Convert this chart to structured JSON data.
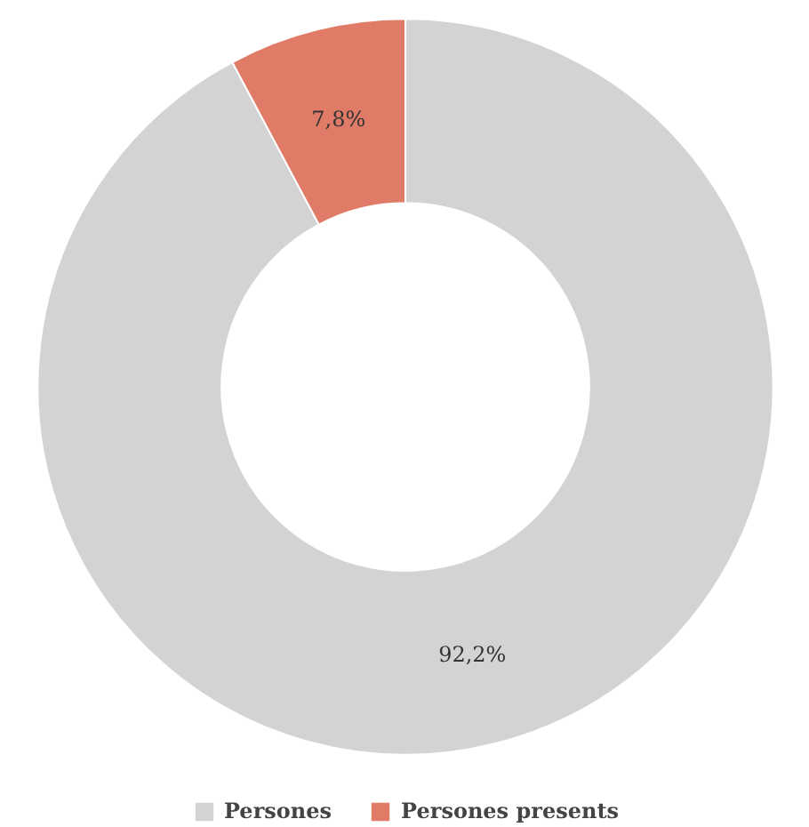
{
  "chart_data": {
    "type": "donut",
    "categories": [
      "Persones",
      "Persones presents"
    ],
    "values": [
      92.2,
      7.8
    ],
    "colors": [
      "#d3d3d3",
      "#e07b67"
    ],
    "value_labels": [
      "92,2%",
      "7,8%"
    ],
    "legend": "bottom"
  }
}
